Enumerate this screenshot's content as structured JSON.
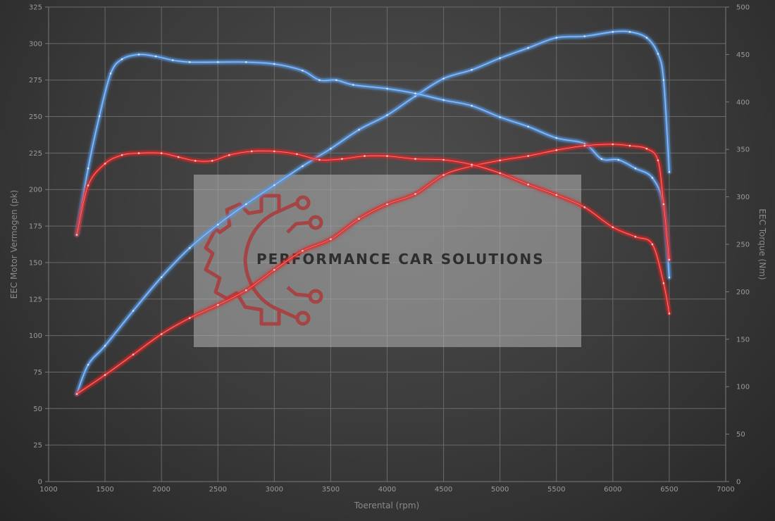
{
  "chart_data": {
    "type": "line",
    "xlabel": "Toerental (rpm)",
    "ylabel_left": "EEC Motor Vermogen (pk)",
    "ylabel_right": "EEC Torque (Nm)",
    "xlim": [
      1000,
      7000
    ],
    "ylim_left": [
      0,
      325
    ],
    "ylim_right": [
      0,
      500
    ],
    "x_ticks": [
      1000,
      1500,
      2000,
      2500,
      3000,
      3500,
      4000,
      4500,
      5000,
      5500,
      6000,
      6500,
      7000
    ],
    "y_left_ticks": [
      0,
      25,
      50,
      75,
      100,
      125,
      150,
      175,
      200,
      225,
      250,
      275,
      300,
      325
    ],
    "y_right_ticks": [
      0,
      50,
      100,
      150,
      200,
      250,
      300,
      350,
      400,
      450,
      500
    ],
    "grid": true,
    "colors": {
      "tuned": "#5a9be8",
      "stock": "#e02828"
    },
    "series": [
      {
        "group": "tuned",
        "axis": "left",
        "kind": "power",
        "x": [
          1250,
          1350,
          1500,
          1750,
          2000,
          2250,
          2500,
          2750,
          3000,
          3250,
          3500,
          3750,
          4000,
          4250,
          4500,
          4750,
          5000,
          5250,
          5500,
          5750,
          6000,
          6150,
          6300,
          6400,
          6450,
          6500
        ],
        "y": [
          60,
          80,
          93,
          117,
          140,
          160,
          176,
          190,
          203,
          216,
          228,
          241,
          251,
          264,
          276,
          282,
          290,
          297,
          304,
          305,
          308,
          308,
          304,
          293,
          275,
          212
        ]
      },
      {
        "group": "tuned",
        "axis": "right",
        "kind": "torque",
        "x": [
          1250,
          1350,
          1450,
          1550,
          1650,
          1800,
          1950,
          2100,
          2250,
          2500,
          2750,
          3000,
          3250,
          3400,
          3550,
          3700,
          4000,
          4250,
          4500,
          4750,
          5000,
          5250,
          5500,
          5750,
          5900,
          6050,
          6200,
          6350,
          6450,
          6500
        ],
        "y": [
          260,
          330,
          385,
          430,
          445,
          450,
          448,
          444,
          442,
          442,
          442,
          440,
          433,
          423,
          423,
          418,
          414,
          409,
          402,
          396,
          384,
          374,
          362,
          356,
          340,
          339,
          330,
          320,
          290,
          215
        ]
      },
      {
        "group": "stock",
        "axis": "left",
        "kind": "power",
        "x": [
          1250,
          1500,
          1750,
          2000,
          2250,
          2500,
          2750,
          3000,
          3250,
          3500,
          3750,
          4000,
          4250,
          4500,
          4750,
          5000,
          5250,
          5500,
          5750,
          6000,
          6150,
          6300,
          6400,
          6450,
          6500
        ],
        "y": [
          60,
          73,
          87,
          101,
          112,
          121,
          131,
          145,
          158,
          166,
          180,
          190,
          197,
          210,
          216,
          220,
          223,
          227,
          230,
          231,
          230,
          228,
          220,
          190,
          152
        ]
      },
      {
        "group": "stock",
        "axis": "right",
        "kind": "torque",
        "x": [
          1250,
          1350,
          1500,
          1650,
          1800,
          2000,
          2150,
          2300,
          2450,
          2600,
          2800,
          3000,
          3200,
          3400,
          3600,
          3800,
          4000,
          4250,
          4500,
          4750,
          5000,
          5250,
          5500,
          5750,
          6000,
          6200,
          6350,
          6450,
          6500
        ],
        "y": [
          260,
          312,
          335,
          344,
          346,
          346,
          342,
          338,
          338,
          344,
          348,
          348,
          345,
          339,
          340,
          343,
          343,
          340,
          339,
          334,
          325,
          313,
          302,
          289,
          268,
          258,
          250,
          209,
          177
        ]
      }
    ]
  },
  "watermark": {
    "text": "PERFORMANCE CAR SOLUTIONS",
    "icon": "gear-circuit-logo-icon"
  }
}
